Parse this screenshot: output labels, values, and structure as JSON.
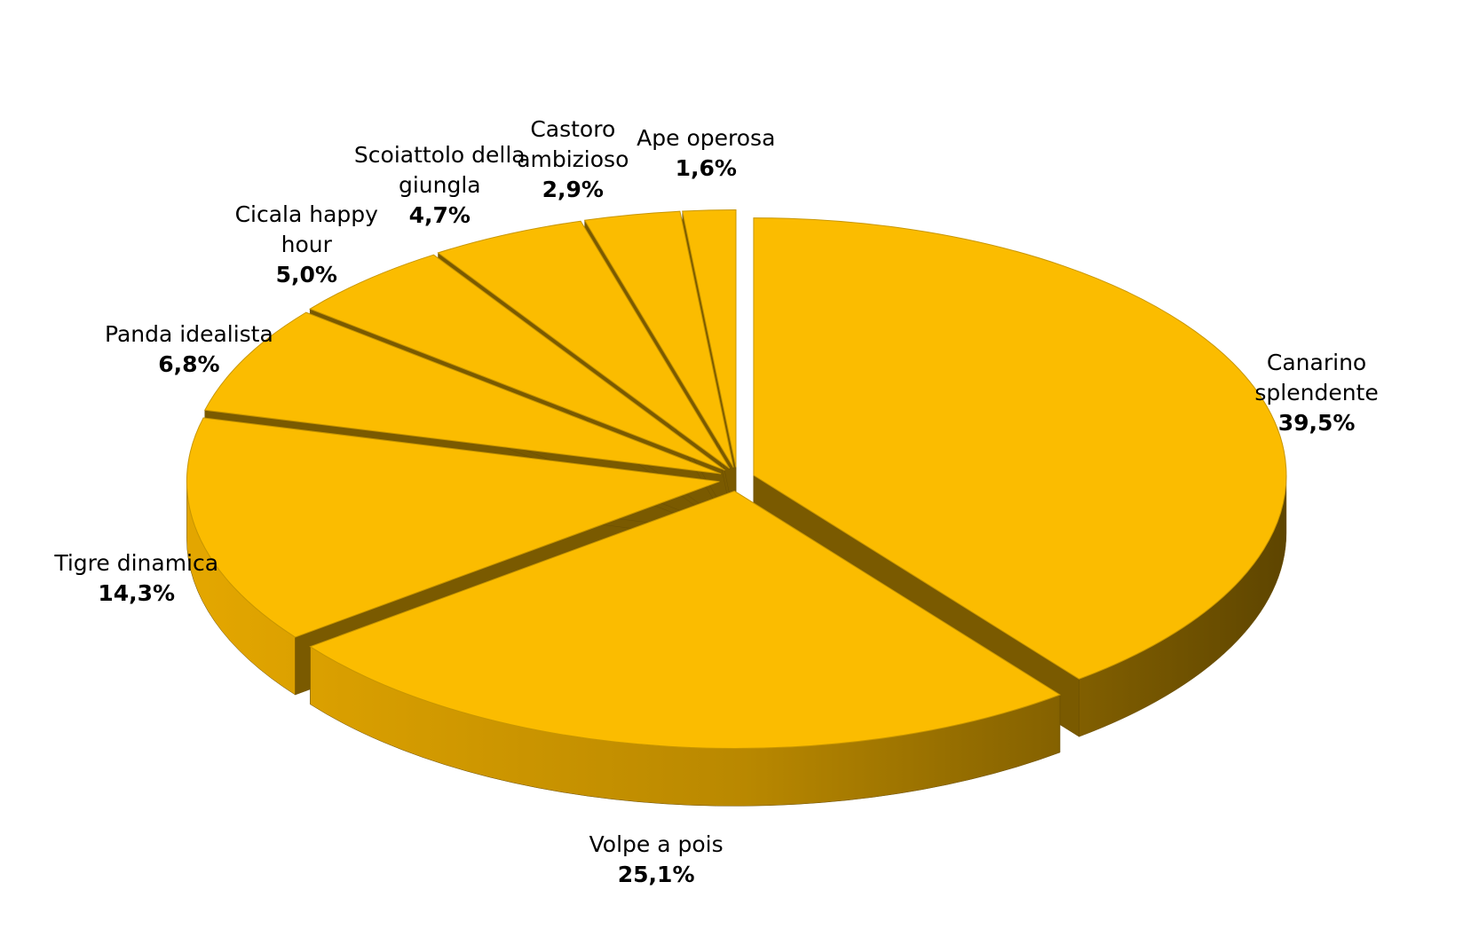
{
  "chart_data": {
    "type": "pie",
    "categories": [
      "Canarino splendente",
      "Volpe a pois",
      "Tigre dinamica",
      "Panda idealista",
      "Cicala happy hour",
      "Scoiattolo della giungla",
      "Castoro ambizioso",
      "Ape operosa"
    ],
    "values": [
      39.5,
      25.1,
      14.3,
      6.8,
      5.0,
      4.7,
      2.9,
      1.6
    ],
    "value_labels": [
      "39,5%",
      "25,1%",
      "14,3%",
      "6,8%",
      "5,0%",
      "4,7%",
      "2,9%",
      "1,6%"
    ],
    "color": "#fbbc00"
  }
}
